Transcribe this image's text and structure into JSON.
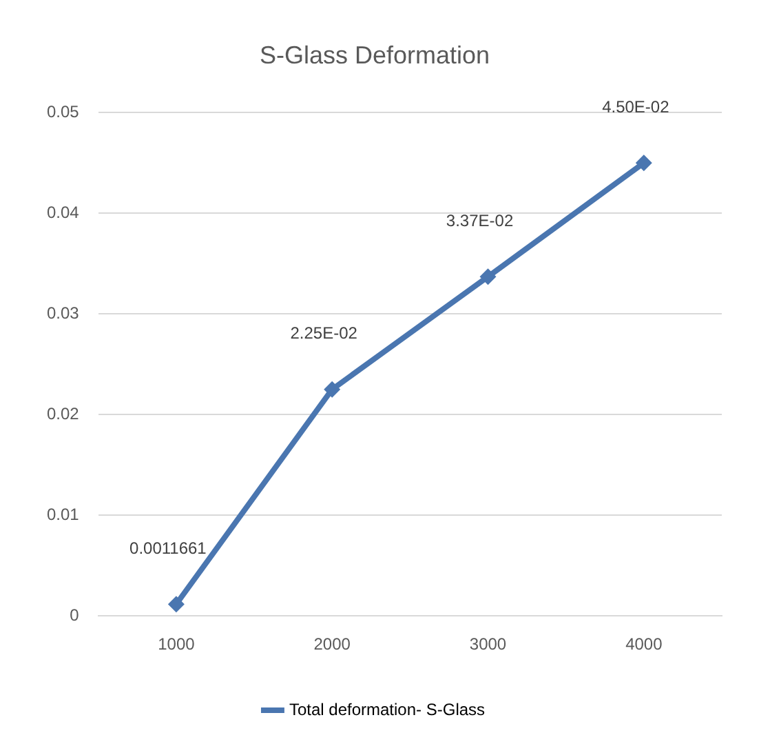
{
  "chart_data": {
    "type": "line",
    "title": "S-Glass Deformation",
    "categories": [
      "1000",
      "2000",
      "3000",
      "4000"
    ],
    "series": [
      {
        "name": "Total deformation- S-Glass",
        "color": "#4a76b0",
        "values": [
          0.0011661,
          0.0225,
          0.0337,
          0.045
        ],
        "value_labels": [
          "0.0011661",
          "2.25E-02",
          "3.37E-02",
          "4.50E-02"
        ]
      }
    ],
    "ylim": [
      0,
      0.05
    ],
    "yticks": [
      0,
      0.01,
      0.02,
      0.03,
      0.04,
      0.05
    ],
    "grid": "y",
    "legend": "bottom",
    "marker": "diamond",
    "line_style": "solid"
  }
}
